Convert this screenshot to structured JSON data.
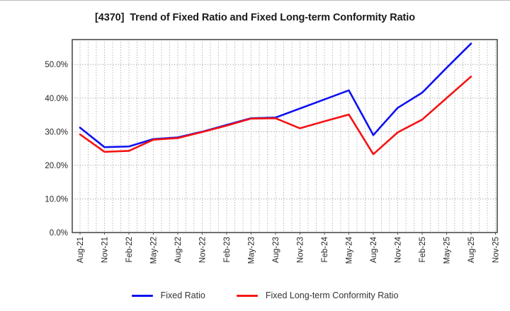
{
  "chart_data": {
    "type": "line",
    "title": "[4370]  Trend of Fixed Ratio and Fixed Long-term Conformity Ratio",
    "xlabel": "",
    "ylabel": "",
    "categories": [
      "Aug-21",
      "Nov-21",
      "Feb-22",
      "May-22",
      "Aug-22",
      "Nov-22",
      "Feb-23",
      "May-23",
      "Aug-23",
      "Nov-23",
      "Feb-24",
      "May-24",
      "Aug-24",
      "Nov-24",
      "Feb-25",
      "May-25",
      "Aug-25",
      "Nov-25"
    ],
    "series": [
      {
        "name": "Fixed Ratio",
        "color": "#0d12f0",
        "values": [
          31.2,
          25.4,
          25.6,
          27.8,
          28.3,
          30.0,
          32.0,
          34.0,
          34.2,
          36.9,
          39.6,
          42.3,
          29.0,
          37.1,
          41.6,
          49.0,
          56.2,
          null
        ]
      },
      {
        "name": "Fixed Long-term Conformity Ratio",
        "color": "#f41414",
        "values": [
          29.2,
          24.0,
          24.3,
          27.6,
          28.1,
          29.9,
          31.8,
          33.9,
          34.0,
          31.0,
          33.1,
          35.1,
          23.3,
          29.8,
          33.6,
          40.0,
          46.4,
          null
        ]
      }
    ],
    "y_tick_labels": [
      "0.0%",
      "10.0%",
      "20.0%",
      "30.0%",
      "40.0%",
      "50.0%"
    ],
    "y_tick_values": [
      0,
      10,
      20,
      30,
      40,
      50
    ],
    "ylim": [
      0,
      57.4
    ],
    "grid": "dotted; horizontal at each 10% tick, vertical monthly (labels quarterly)",
    "legend_position": "bottom-center",
    "style": {
      "background": "#ffffff",
      "frame_color": "#4d4d4d",
      "grid_color": "#999999",
      "tick_label_color": "#262626",
      "title_color": "#1a1a1a",
      "legend_text_color": "#333333"
    }
  }
}
